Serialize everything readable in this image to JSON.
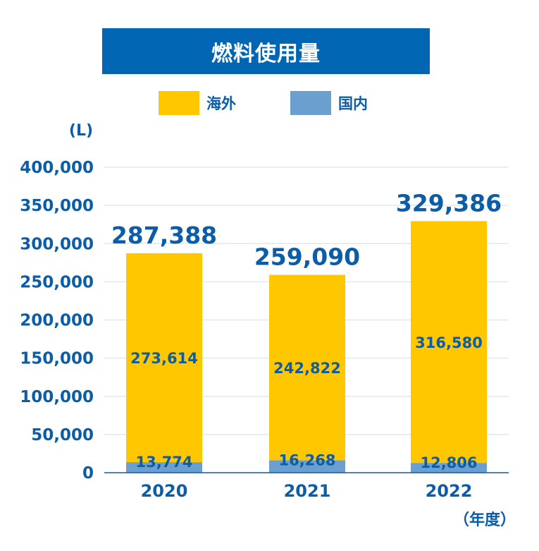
{
  "colors": {
    "overseas": "#ffc700",
    "domestic": "#6b9fd0",
    "title_bg": "#0066b3",
    "text": "#0b5da8",
    "grid": "#dfe7f0",
    "axis": "#0b5da8"
  },
  "chart_data": {
    "type": "bar",
    "stacked": true,
    "title": "燃料使用量",
    "ylabel": "(L)",
    "xlabel": "（年度）",
    "categories": [
      "2020",
      "2021",
      "2022"
    ],
    "ylim": [
      0,
      400000
    ],
    "yticks": [
      0,
      50000,
      100000,
      150000,
      200000,
      250000,
      300000,
      350000,
      400000
    ],
    "ytick_labels": [
      "0",
      "50,000",
      "100,000",
      "150,000",
      "200,000",
      "250,000",
      "300,000",
      "350,000",
      "400,000"
    ],
    "series": [
      {
        "name": "国内",
        "values": [
          13774,
          16268,
          12806
        ],
        "labels": [
          "13,774",
          "16,268",
          "12,806"
        ]
      },
      {
        "name": "海外",
        "values": [
          273614,
          242822,
          316580
        ],
        "labels": [
          "273,614",
          "242,822",
          "316,580"
        ]
      }
    ],
    "totals": [
      287388,
      259090,
      329386
    ],
    "total_labels": [
      "287,388",
      "259,090",
      "329,386"
    ],
    "legend_position": "top",
    "grid": true
  }
}
